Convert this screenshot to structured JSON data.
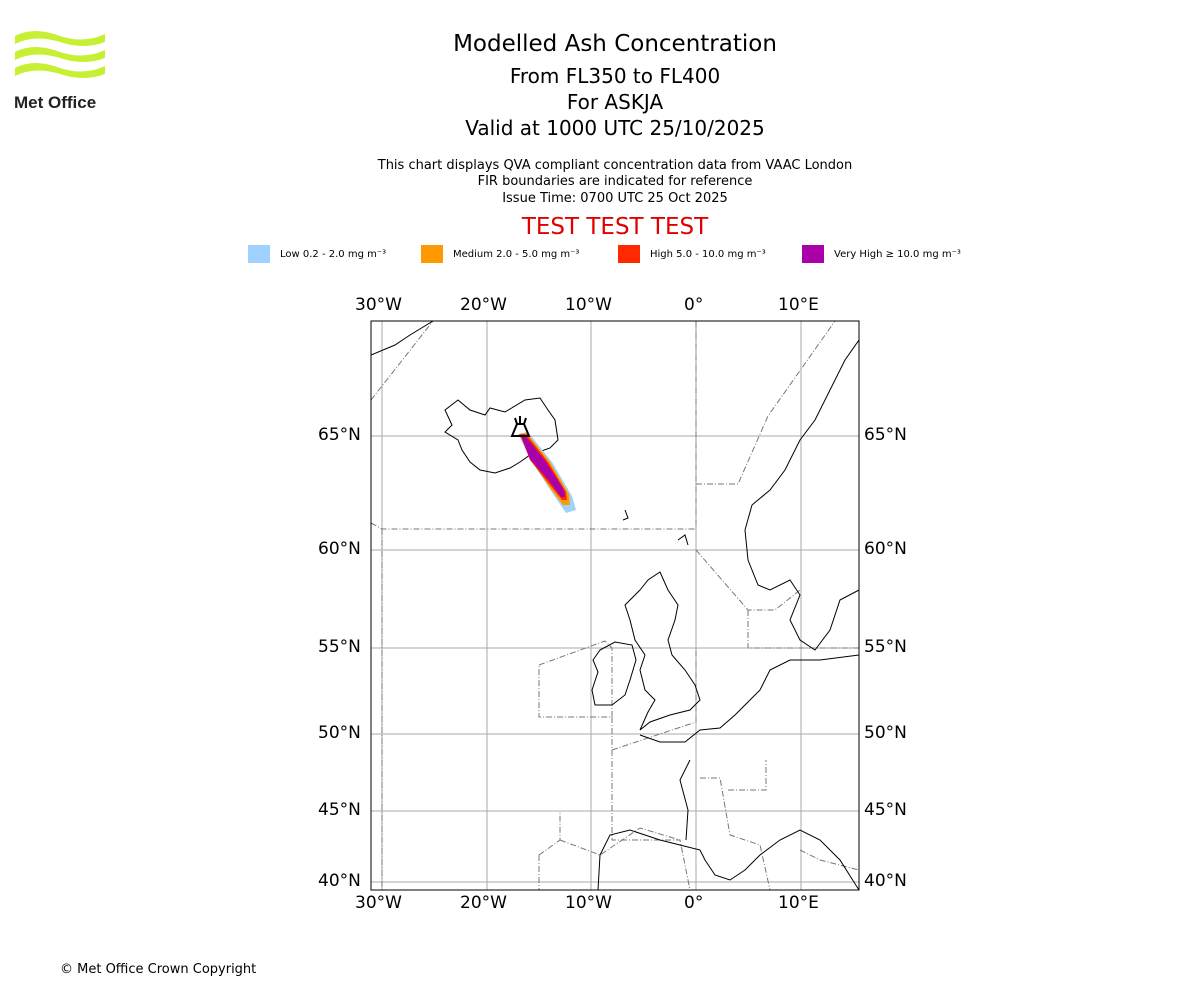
{
  "logo": {
    "text": "Met Office"
  },
  "header": {
    "title": "Modelled Ash Concentration",
    "levels": "From FL350 to FL400",
    "volcano": "For ASKJA",
    "valid": "Valid at 1000 UTC 25/10/2025"
  },
  "subtitle": {
    "line1": "This chart displays QVA compliant concentration data from VAAC London",
    "line2": "FIR boundaries are indicated for reference",
    "line3": "Issue Time: 0700 UTC 25 Oct 2025"
  },
  "banner": "TEST TEST TEST",
  "legend": [
    {
      "label": "Low 0.2 - 2.0 mg m⁻³",
      "color": "#a0d2ff"
    },
    {
      "label": "Medium 2.0 - 5.0 mg m⁻³",
      "color": "#ff9900"
    },
    {
      "label": "High 5.0 - 10.0 mg m⁻³",
      "color": "#ff2800"
    },
    {
      "label": "Very High ≥ 10.0 mg m⁻³",
      "color": "#aa00aa"
    }
  ],
  "map": {
    "lon_ticks": [
      "30°W",
      "20°W",
      "10°W",
      "0°",
      "10°E"
    ],
    "lat_ticks": [
      "65°N",
      "60°N",
      "55°N",
      "50°N",
      "45°N",
      "40°N"
    ]
  },
  "footer": {
    "copyright": "© Met Office Crown Copyright"
  }
}
